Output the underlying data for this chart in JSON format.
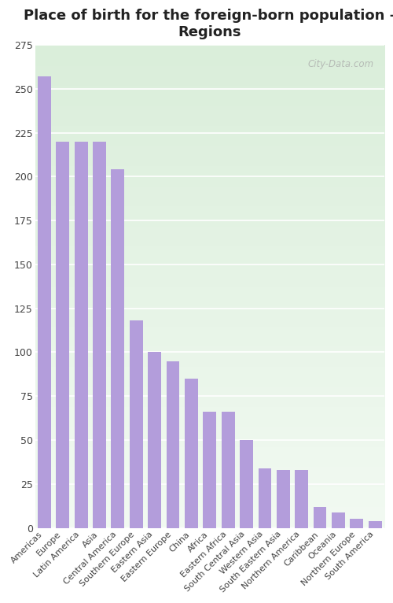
{
  "title": "Place of birth for the foreign-born population -\nRegions",
  "categories": [
    "Americas",
    "Europe",
    "Latin America",
    "Asia",
    "Central America",
    "Southern Europe",
    "Eastern Asia",
    "Eastern Europe",
    "China",
    "Africa",
    "Eastern Africa",
    "South Central Asia",
    "Western Asia",
    "South Eastern Asia",
    "Northern America",
    "Caribbean",
    "Oceania",
    "Northern Europe",
    "South America"
  ],
  "values": [
    257,
    220,
    220,
    220,
    204,
    118,
    100,
    95,
    85,
    66,
    66,
    50,
    34,
    33,
    33,
    12,
    9,
    5,
    4
  ],
  "bar_color": "#b39ddb",
  "fig_bg_color": "#ffffff",
  "plot_bg_color_top": "#f0f7f0",
  "plot_bg_color_bottom": "#c8e6c9",
  "grid_color": "#ffffff",
  "title_fontsize": 13,
  "tick_fontsize": 8,
  "ylim": [
    0,
    275
  ],
  "yticks": [
    0,
    25,
    50,
    75,
    100,
    125,
    150,
    175,
    200,
    225,
    250,
    275
  ],
  "watermark": "City-Data.com"
}
